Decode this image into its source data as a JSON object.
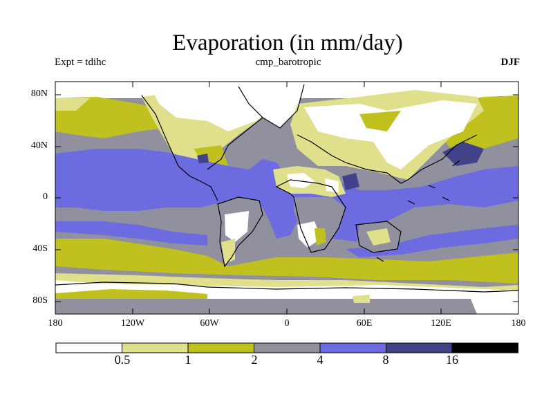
{
  "title": "Evaporation (in mm/day)",
  "subtitle_left": "Expt = tdihc",
  "subtitle_center": "cmp_barotropic",
  "subtitle_right": "DJF",
  "map": {
    "y_ticks": [
      "80N",
      "40N",
      "0",
      "40S",
      "80S"
    ],
    "x_ticks": [
      "180",
      "120W",
      "60W",
      "0",
      "60E",
      "120E",
      "180"
    ],
    "lon_range": [
      -180,
      180
    ],
    "lat_range": [
      -90,
      90
    ]
  },
  "colorbar": {
    "levels": [
      "0.5",
      "1",
      "2",
      "4",
      "8",
      "16"
    ],
    "colors": [
      "#ffffff",
      "#e0e08c",
      "#c0c01e",
      "#90909e",
      "#6c6ce0",
      "#42428a",
      "#000000"
    ]
  }
}
